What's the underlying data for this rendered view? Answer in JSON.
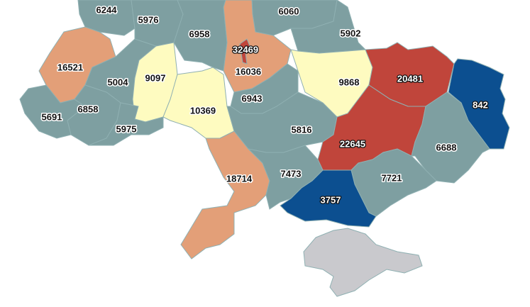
{
  "colors": {
    "low_teal": "#7e9fa1",
    "mid_yellow": "#fefbc0",
    "high_orange": "#e39f78",
    "very_high_red": "#c0453b",
    "lowest_blue": "#0c4f90",
    "no_data_gray": "#c9c9cd"
  },
  "regions": [
    {
      "id": "volyn",
      "value": "6244",
      "cls": "low_teal"
    },
    {
      "id": "rivne",
      "value": "5976",
      "cls": "low_teal"
    },
    {
      "id": "zhytomyr",
      "value": "6958",
      "cls": "low_teal"
    },
    {
      "id": "chernihiv",
      "value": "6060",
      "cls": "low_teal"
    },
    {
      "id": "sumy",
      "value": "5902",
      "cls": "low_teal"
    },
    {
      "id": "lviv",
      "value": "16521",
      "cls": "high_orange"
    },
    {
      "id": "ternopil",
      "value": "5004",
      "cls": "low_teal"
    },
    {
      "id": "khmelnytskyi",
      "value": "9097",
      "cls": "mid_yellow"
    },
    {
      "id": "vinnytsia",
      "value": "10369",
      "cls": "mid_yellow"
    },
    {
      "id": "kyiv-oblast",
      "value": "16036",
      "cls": "high_orange"
    },
    {
      "id": "kyiv-city",
      "value": "32469",
      "cls": "very_high_red"
    },
    {
      "id": "cherkasy",
      "value": "6943",
      "cls": "low_teal"
    },
    {
      "id": "poltava",
      "value": "9868",
      "cls": "mid_yellow"
    },
    {
      "id": "kharkiv",
      "value": "20481",
      "cls": "very_high_red"
    },
    {
      "id": "luhansk",
      "value": "842",
      "cls": "lowest_blue"
    },
    {
      "id": "zakarpattia",
      "value": "5691",
      "cls": "low_teal"
    },
    {
      "id": "ivano-frankivsk",
      "value": "6858",
      "cls": "low_teal"
    },
    {
      "id": "chernivtsi",
      "value": "5975",
      "cls": "low_teal"
    },
    {
      "id": "kirovohrad",
      "value": "5816",
      "cls": "low_teal"
    },
    {
      "id": "dnipropetrovsk",
      "value": "22645",
      "cls": "very_high_red"
    },
    {
      "id": "donetsk",
      "value": "6688",
      "cls": "low_teal"
    },
    {
      "id": "odesa",
      "value": "18714",
      "cls": "high_orange"
    },
    {
      "id": "mykolaiv",
      "value": "7473",
      "cls": "low_teal"
    },
    {
      "id": "zaporizhzhia",
      "value": "7721",
      "cls": "low_teal"
    },
    {
      "id": "kherson",
      "value": "3757",
      "cls": "lowest_blue"
    },
    {
      "id": "crimea",
      "value": null,
      "cls": "no_data_gray"
    }
  ]
}
